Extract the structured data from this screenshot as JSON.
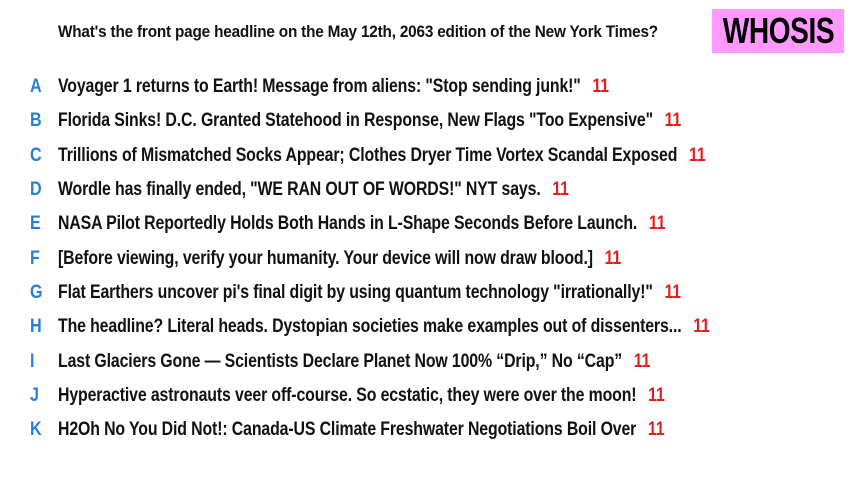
{
  "header": {
    "question": "What's the front page headline on the May 12th, 2063 edition of the New York Times?",
    "brand": "WHOSIS"
  },
  "colors": {
    "letter": "#2a7fd4",
    "score": "#e02020",
    "brand_bg": "#ff99ff"
  },
  "answers": [
    {
      "letter": "A",
      "text": "Voyager 1 returns to Earth! Message from aliens: \"Stop sending junk!\"",
      "score": "11"
    },
    {
      "letter": "B",
      "text": "Florida Sinks! D.C. Granted Statehood in Response, New Flags \"Too Expensive\"",
      "score": "11"
    },
    {
      "letter": "C",
      "text": "Trillions of Mismatched Socks Appear; Clothes Dryer Time Vortex Scandal Exposed",
      "score": "11"
    },
    {
      "letter": "D",
      "text": "Wordle has finally ended, \"WE RAN OUT OF WORDS!\" NYT says.",
      "score": "11"
    },
    {
      "letter": "E",
      "text": "NASA Pilot Reportedly Holds Both Hands in L-Shape Seconds Before Launch.",
      "score": "11"
    },
    {
      "letter": "F",
      "text": "[Before viewing, verify your humanity. Your device will now draw blood.]",
      "score": "11"
    },
    {
      "letter": "G",
      "text": "Flat Earthers uncover pi's final digit by using quantum technology \"irrationally!\"",
      "score": "11"
    },
    {
      "letter": "H",
      "text": "The headline? Literal heads. Dystopian societies make examples out of dissenters...",
      "score": "11"
    },
    {
      "letter": "I",
      "text": "Last Glaciers Gone — Scientists Declare Planet Now 100% “Drip,” No “Cap”",
      "score": "11"
    },
    {
      "letter": "J",
      "text": "Hyperactive astronauts veer off-course. So ecstatic, they were over the moon!",
      "score": "11"
    },
    {
      "letter": "K",
      "text": "H2Oh No You Did Not!: Canada-US  Climate Freshwater Negotiations Boil Over",
      "score": "11"
    }
  ]
}
